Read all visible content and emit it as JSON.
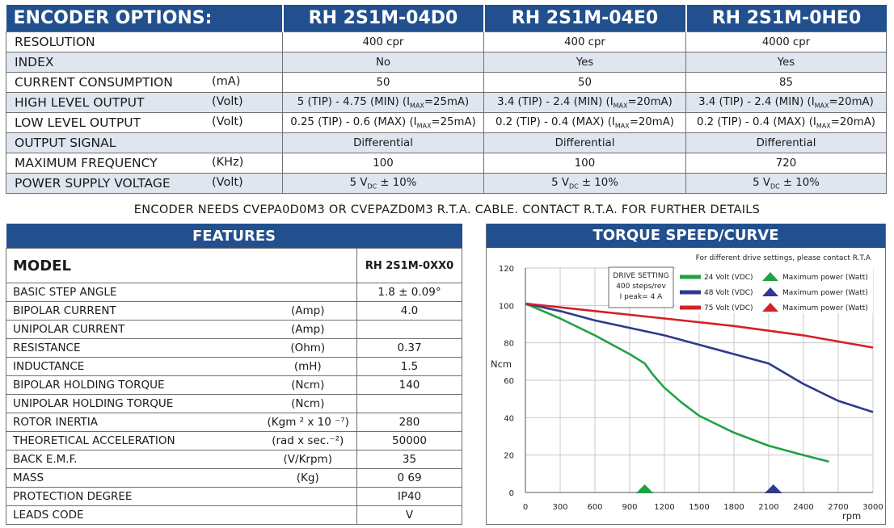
{
  "encoder": {
    "title": "ENCODER OPTIONS:",
    "models": [
      "RH 2S1M-04D0",
      "RH 2S1M-04E0",
      "RH 2S1M-0HE0"
    ],
    "rows": [
      {
        "label": "RESOLUTION",
        "unit": "",
        "values": [
          "400 cpr",
          "400 cpr",
          "4000 cpr"
        ]
      },
      {
        "label": "INDEX",
        "unit": "",
        "values": [
          "No",
          "Yes",
          "Yes"
        ]
      },
      {
        "label": "CURRENT CONSUMPTION",
        "unit": "(mA)",
        "values": [
          "50",
          "50",
          "85"
        ]
      },
      {
        "label": "HIGH LEVEL OUTPUT",
        "unit": "(Volt)",
        "values": [
          {
            "pre": "5 (TIP) - 4.75 (MIN) (I",
            "sub": "MAX",
            "post": "=25mA)"
          },
          {
            "pre": "3.4 (TIP) - 2.4 (MIN) (I",
            "sub": "MAX",
            "post": "=20mA)"
          },
          {
            "pre": "3.4 (TIP) - 2.4 (MIN) (I",
            "sub": "MAX",
            "post": "=20mA)"
          }
        ]
      },
      {
        "label": "LOW LEVEL OUTPUT",
        "unit": "(Volt)",
        "values": [
          {
            "pre": "0.25 (TIP) - 0.6 (MAX) (I",
            "sub": "MAX",
            "post": "=25mA)"
          },
          {
            "pre": "0.2 (TIP) - 0.4 (MAX) (I",
            "sub": "MAX",
            "post": "=20mA)"
          },
          {
            "pre": "0.2 (TIP) - 0.4 (MAX) (I",
            "sub": "MAX",
            "post": "=20mA)"
          }
        ]
      },
      {
        "label": "OUTPUT SIGNAL",
        "unit": "",
        "values": [
          "Differential",
          "Differential",
          "Differential"
        ]
      },
      {
        "label": "MAXIMUM FREQUENCY",
        "unit": "(KHz)",
        "values": [
          "100",
          "100",
          "720"
        ]
      },
      {
        "label": "POWER SUPPLY VOLTAGE",
        "unit": "(Volt)",
        "values": [
          {
            "pre": "5 V",
            "sub": "DC",
            "post": " ± 10%"
          },
          {
            "pre": "5 V",
            "sub": "DC",
            "post": " ± 10%"
          },
          {
            "pre": "5 V",
            "sub": "DC",
            "post": " ± 10%"
          }
        ]
      }
    ]
  },
  "note": "ENCODER NEEDS CVEPA0D0M3 OR CVEPAZD0M3 R.T.A. CABLE. CONTACT R.T.A. FOR FURTHER DETAILS",
  "features": {
    "title": "FEATURES",
    "model_label": "MODEL",
    "model_value": "RH 2S1M-0XX0",
    "rows": [
      {
        "label": "BASIC STEP ANGLE",
        "unit": "",
        "value": "1.8 ± 0.09°"
      },
      {
        "label": "BIPOLAR CURRENT",
        "unit": "(Amp)",
        "value": "4.0"
      },
      {
        "label": "UNIPOLAR CURRENT",
        "unit": "(Amp)",
        "value": ""
      },
      {
        "label": "RESISTANCE",
        "unit": "(Ohm)",
        "value": "0.37"
      },
      {
        "label": "INDUCTANCE",
        "unit": "(mH)",
        "value": "1.5"
      },
      {
        "label": "BIPOLAR HOLDING TORQUE",
        "unit": "(Ncm)",
        "value": "140"
      },
      {
        "label": "UNIPOLAR HOLDING TORQUE",
        "unit": "(Ncm)",
        "value": ""
      },
      {
        "label": "ROTOR INERTIA",
        "unit": "(Kgm ² x 10 ⁻⁷)",
        "value": "280"
      },
      {
        "label": "THEORETICAL ACCELERATION",
        "unit": "(rad x sec.⁻²)",
        "value": "50000"
      },
      {
        "label": "BACK E.M.F.",
        "unit": "(V/Krpm)",
        "value": "35"
      },
      {
        "label": "MASS",
        "unit": "(Kg)",
        "value": "0 69"
      },
      {
        "label": "PROTECTION DEGREE",
        "unit": "",
        "value": "IP40"
      },
      {
        "label": "LEADS CODE",
        "unit": "",
        "value": "V"
      }
    ]
  },
  "torque": {
    "title": "TORQUE SPEED/CURVE",
    "note": "For different drive settings, please contact R.T.A",
    "drive_box": [
      "DRIVE SETTING",
      "400 steps/rev",
      "I peak= 4 A"
    ],
    "max_power_label": "Maximum power (Watt)"
  },
  "chart_data": {
    "type": "line",
    "xlabel": "rpm",
    "ylabel": "Ncm",
    "xlim": [
      0,
      3000
    ],
    "ylim": [
      0,
      120
    ],
    "xticks": [
      0,
      300,
      600,
      900,
      1200,
      1500,
      1800,
      2100,
      2400,
      2700,
      3000
    ],
    "yticks": [
      0,
      20,
      40,
      60,
      80,
      100,
      120
    ],
    "grid": true,
    "series": [
      {
        "name": "24 Volt (VDC)",
        "color": "#22a045",
        "x": [
          0,
          300,
          600,
          900,
          1030,
          1100,
          1200,
          1350,
          1500,
          1800,
          2100,
          2400,
          2620
        ],
        "y": [
          101,
          93,
          84,
          74,
          69,
          63,
          56,
          48,
          41,
          32,
          25,
          20,
          16.5
        ],
        "max_power_rpm": 1030
      },
      {
        "name": "48 Volt (VDC)",
        "color": "#2e3a8c",
        "x": [
          0,
          300,
          600,
          900,
          1200,
          1500,
          1800,
          2100,
          2400,
          2700,
          3000
        ],
        "y": [
          101,
          97,
          92,
          88,
          84,
          79,
          74,
          69,
          58,
          49,
          43
        ],
        "max_power_rpm": 2140
      },
      {
        "name": "75 Volt (VDC)",
        "color": "#d42027",
        "x": [
          0,
          600,
          1200,
          1800,
          2400,
          3000
        ],
        "y": [
          101,
          97,
          93,
          89,
          84,
          77.5
        ],
        "max_power_rpm": null
      }
    ]
  }
}
